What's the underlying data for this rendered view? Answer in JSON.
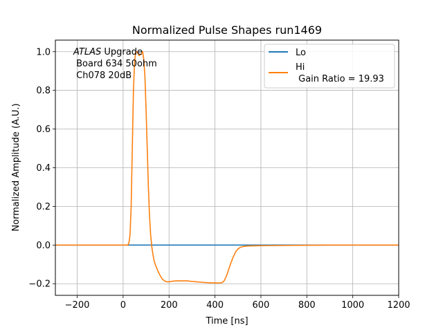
{
  "chart_data": {
    "type": "line",
    "title": "Normalized Pulse Shapes run1469",
    "xlabel": "Time [ns]",
    "ylabel": "Normalized Amplitude (A.U.)",
    "xlim": [
      -295,
      1200
    ],
    "ylim": [
      -0.26,
      1.06
    ],
    "xticks": [
      -200,
      0,
      200,
      400,
      600,
      800,
      1000,
      1200
    ],
    "yticks": [
      -0.2,
      0.0,
      0.2,
      0.4,
      0.6,
      0.8,
      1.0
    ],
    "xtick_labels": [
      "−200",
      "0",
      "200",
      "400",
      "600",
      "800",
      "1000",
      "1200"
    ],
    "ytick_labels": [
      "−0.2",
      "0.0",
      "0.2",
      "0.4",
      "0.6",
      "0.8",
      "1.0"
    ],
    "grid": true,
    "legend_position": "top-right",
    "annotation": {
      "lines": [
        "ATLAS Upgrade",
        "Board 634 50ohm",
        "Ch078 20dB"
      ],
      "italic_word": "ATLAS",
      "rest_of_first_line": " Upgrade"
    },
    "series": [
      {
        "name": "Lo",
        "legend_label": "Lo",
        "color": "#1f77b4",
        "x": [
          -295,
          1200
        ],
        "y": [
          0.0,
          0.0
        ]
      },
      {
        "name": "Hi",
        "legend_label": "Hi",
        "legend_sub": "Gain Ratio = 19.93",
        "color": "#ff7f0e",
        "x": [
          -295,
          -100,
          0,
          20,
          25,
          30,
          35,
          40,
          45,
          50,
          55,
          60,
          65,
          70,
          75,
          80,
          85,
          90,
          95,
          100,
          105,
          110,
          115,
          120,
          125,
          130,
          135,
          140,
          150,
          160,
          170,
          180,
          190,
          200,
          210,
          220,
          240,
          260,
          280,
          300,
          320,
          340,
          360,
          380,
          400,
          420,
          430,
          440,
          450,
          460,
          470,
          480,
          490,
          500,
          510,
          520,
          540,
          560,
          600,
          700,
          800,
          900,
          1000,
          1100,
          1200
        ],
        "y": [
          0.0,
          0.0,
          0.0,
          0.0,
          0.01,
          0.05,
          0.2,
          0.5,
          0.8,
          0.95,
          1.0,
          1.0,
          0.99,
          0.98,
          0.985,
          0.99,
          1.0,
          0.96,
          0.87,
          0.7,
          0.5,
          0.3,
          0.15,
          0.05,
          -0.01,
          -0.05,
          -0.08,
          -0.1,
          -0.13,
          -0.155,
          -0.175,
          -0.185,
          -0.19,
          -0.19,
          -0.188,
          -0.186,
          -0.185,
          -0.185,
          -0.185,
          -0.188,
          -0.19,
          -0.192,
          -0.194,
          -0.195,
          -0.196,
          -0.196,
          -0.195,
          -0.185,
          -0.16,
          -0.125,
          -0.09,
          -0.06,
          -0.035,
          -0.02,
          -0.012,
          -0.008,
          -0.005,
          -0.004,
          -0.003,
          -0.002,
          -0.001,
          0.0,
          0.0,
          0.0,
          0.0
        ]
      }
    ]
  }
}
